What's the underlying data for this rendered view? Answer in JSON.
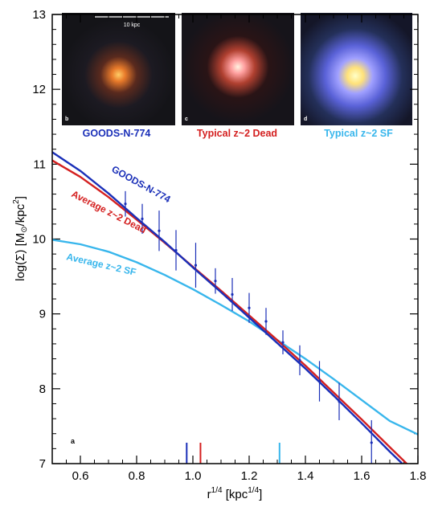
{
  "chart_data": {
    "type": "line",
    "xlabel_base": "r",
    "xlabel_sup": "1/4",
    "xlabel_unit_base": "[kpc",
    "xlabel_unit_sup": "1/4",
    "xlabel_unit_close": "]",
    "ylabel_main": "log(Σ) [M",
    "ylabel_sun": "⊙",
    "ylabel_per": "/kpc",
    "ylabel_sup": "2",
    "ylabel_close": "]",
    "xlim": [
      0.5,
      1.8
    ],
    "ylim": [
      7,
      13
    ],
    "x_ticks": [
      "0.6",
      "0.8",
      "1.0",
      "1.2",
      "1.4",
      "1.6",
      "1.8"
    ],
    "y_ticks": [
      "7",
      "8",
      "9",
      "10",
      "11",
      "12",
      "13"
    ],
    "panel_letter": "a",
    "series": [
      {
        "name": "GOODS-N-774",
        "color": "#1a2fb8",
        "x": [
          0.5,
          0.6,
          0.7,
          0.8,
          0.9,
          1.0,
          1.1,
          1.2,
          1.3,
          1.4,
          1.5,
          1.6,
          1.7,
          1.75
        ],
        "y": [
          11.16,
          10.91,
          10.61,
          10.28,
          9.96,
          9.62,
          9.29,
          8.95,
          8.61,
          8.27,
          7.91,
          7.54,
          7.16,
          6.98
        ]
      },
      {
        "name": "Average z~2 Dead",
        "color": "#d42020",
        "x": [
          0.5,
          0.6,
          0.7,
          0.8,
          0.9,
          1.0,
          1.1,
          1.2,
          1.3,
          1.4,
          1.5,
          1.6,
          1.7,
          1.76
        ],
        "y": [
          11.05,
          10.83,
          10.56,
          10.26,
          9.95,
          9.63,
          9.31,
          8.98,
          8.65,
          8.31,
          7.95,
          7.59,
          7.22,
          7.0
        ]
      },
      {
        "name": "Average z~2 SF",
        "color": "#38b6ec",
        "x": [
          0.5,
          0.6,
          0.7,
          0.8,
          0.9,
          1.0,
          1.1,
          1.2,
          1.3,
          1.4,
          1.5,
          1.6,
          1.7,
          1.8
        ],
        "y": [
          9.99,
          9.93,
          9.83,
          9.69,
          9.52,
          9.33,
          9.12,
          8.9,
          8.65,
          8.4,
          8.13,
          7.85,
          7.57,
          7.39
        ]
      }
    ],
    "data_points": {
      "name": "GOODS-N-774",
      "color": "#1a2fb8",
      "x": [
        0.76,
        0.82,
        0.88,
        0.94,
        1.01,
        1.08,
        1.14,
        1.2,
        1.26,
        1.32,
        1.38,
        1.45,
        1.52,
        1.635
      ],
      "y": [
        10.47,
        10.27,
        10.11,
        9.85,
        9.65,
        9.44,
        9.26,
        9.08,
        8.9,
        8.62,
        8.38,
        8.1,
        7.83,
        7.28
      ],
      "yerr": [
        0.17,
        0.2,
        0.27,
        0.27,
        0.3,
        0.17,
        0.22,
        0.2,
        0.18,
        0.16,
        0.2,
        0.27,
        0.25,
        0.3
      ]
    },
    "effective_radius_markers": [
      {
        "x": 0.978,
        "color": "#1a2fb8"
      },
      {
        "x": 1.027,
        "color": "#d42020"
      },
      {
        "x": 1.308,
        "color": "#38b6ec"
      }
    ]
  },
  "insets": [
    {
      "letter": "b",
      "caption": "GOODS-N-774",
      "caption_color": "#1a2fb8",
      "scalebar_label": "10 kpc"
    },
    {
      "letter": "c",
      "caption": "Typical z~2 Dead",
      "caption_color": "#d42020"
    },
    {
      "letter": "d",
      "caption": "Typical z~2 SF",
      "caption_color": "#38b6ec"
    }
  ]
}
